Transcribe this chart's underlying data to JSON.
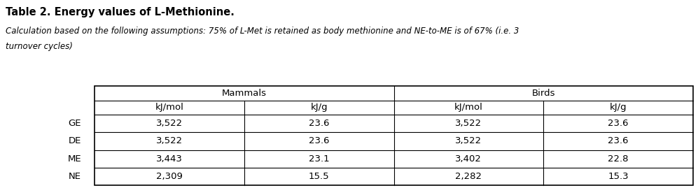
{
  "title": "Table 2. Energy values of L-Methionine.",
  "subtitle_line1": "Calculation based on the following assumptions: 75% of L-Met is retained as body methionine and NE-to-ME is of 67% (i.e. 3",
  "subtitle_line2": "turnover cycles)",
  "col_groups": [
    "Mammals",
    "Birds"
  ],
  "col_subheaders": [
    "kJ/mol",
    "kJ/g",
    "kJ/mol",
    "kJ/g"
  ],
  "row_labels": [
    "GE",
    "DE",
    "ME",
    "NE"
  ],
  "data": [
    [
      "3,522",
      "23.6",
      "3,522",
      "23.6"
    ],
    [
      "3,522",
      "23.6",
      "3,522",
      "23.6"
    ],
    [
      "3,443",
      "23.1",
      "3,402",
      "22.8"
    ],
    [
      "2,309",
      "15.5",
      "2,282",
      "15.3"
    ]
  ],
  "title_fontsize": 10.5,
  "subtitle_fontsize": 8.5,
  "table_fontsize": 9.5,
  "background_color": "#ffffff",
  "line_color": "#000000",
  "text_color": "#000000",
  "fig_width": 9.97,
  "fig_height": 2.69,
  "dpi": 100
}
